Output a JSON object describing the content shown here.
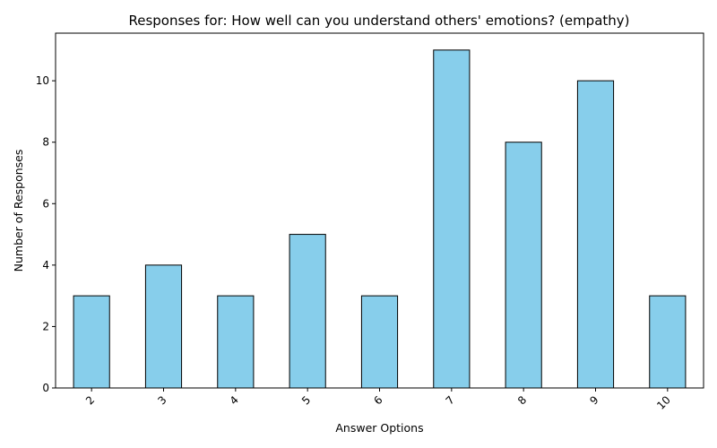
{
  "chart_data": {
    "type": "bar",
    "title": "Responses for: How well can you understand others' emotions? (empathy)",
    "xlabel": "Answer Options",
    "ylabel": "Number of Responses",
    "categories": [
      "2",
      "3",
      "4",
      "5",
      "6",
      "7",
      "8",
      "9",
      "10"
    ],
    "values": [
      3,
      4,
      3,
      5,
      3,
      11,
      8,
      10,
      3
    ],
    "ylim": [
      0,
      11.55
    ],
    "yticks": [
      0,
      2,
      4,
      6,
      8,
      10
    ],
    "grid": false,
    "bar_color": "#87CEEB",
    "bar_edge_color": "#000000",
    "x_tick_rotation_deg": 45
  }
}
